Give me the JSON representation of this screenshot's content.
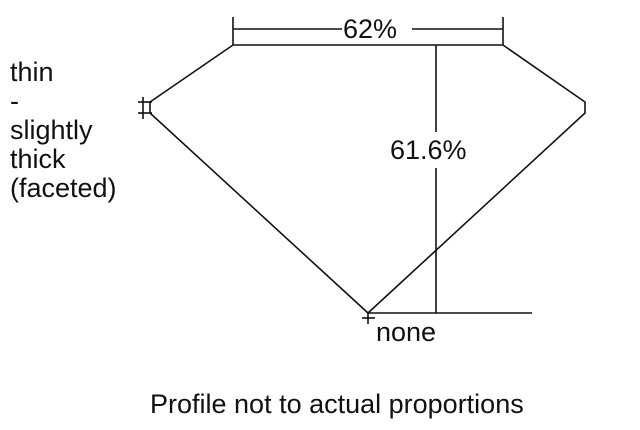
{
  "girdle_label": [
    "thin",
    "-",
    "slightly",
    "thick",
    "(faceted)"
  ],
  "table_label": "62%",
  "depth_label": "61.6%",
  "culet_label": "none",
  "caption": "Profile not to actual proportions"
}
